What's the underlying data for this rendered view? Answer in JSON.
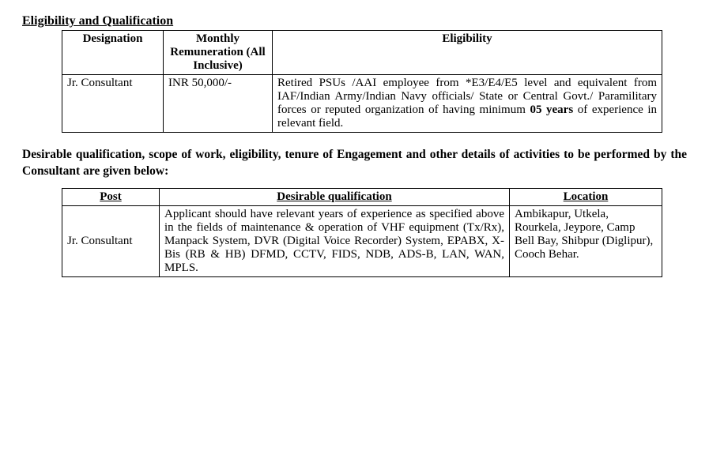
{
  "section1": {
    "heading": "Eligibility and Qualification",
    "headers": {
      "designation": "Designation",
      "remuneration": "Monthly Remuneration (All Inclusive)",
      "eligibility": "Eligibility"
    },
    "row": {
      "designation": "Jr. Consultant",
      "remuneration": "INR 50,000/-",
      "eligibility_pre": "Retired PSUs /AAI employee from *E3/E4/E5 level and equivalent from IAF/Indian Army/Indian Navy officials/ State or Central Govt./ Paramilitary forces or reputed organization of having minimum ",
      "eligibility_bold": "05 years",
      "eligibility_post": " of experience in relevant field."
    }
  },
  "midpara": "Desirable qualification, scope of work, eligibility, tenure of Engagement and other details of activities to be performed by the Consultant are given below:",
  "section2": {
    "headers": {
      "post": "Post",
      "qualification": "Desirable qualification",
      "location": "Location"
    },
    "row": {
      "post": "Jr. Consultant",
      "qualification": "Applicant should have relevant years of experience as specified above in the fields of maintenance & operation of VHF equipment (Tx/Rx), Manpack System, DVR (Digital Voice Recorder) System, EPABX, X-Bis (RB & HB) DFMD, CCTV, FIDS, NDB, ADS-B, LAN, WAN, MPLS.",
      "location": "Ambikapur, Utkela, Rourkela, Jeypore, Camp Bell Bay, Shibpur (Diglipur), Cooch Behar."
    }
  }
}
